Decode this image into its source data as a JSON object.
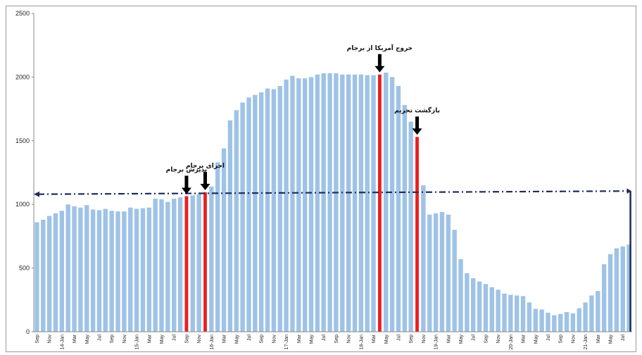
{
  "chart_data": {
    "type": "bar",
    "title": "",
    "xlabel": "",
    "ylabel": "",
    "ylim": [
      0,
      2500
    ],
    "yticks": [
      0,
      500,
      1000,
      1500,
      2000,
      2500
    ],
    "grid": false,
    "legend": "none",
    "bar_color": "#9ec3e6",
    "highlight_color": "#ee1c1c",
    "reference_line_color": "#1f2d5c",
    "arrow_color": "#000000",
    "x_tick_labels": [
      "Sep",
      "Nov",
      "14-Jan",
      "Mar",
      "May",
      "Jul",
      "Sep",
      "Nov",
      "15-Jan",
      "Mar",
      "May",
      "Jul",
      "Sep",
      "Nov",
      "16-Jan",
      "Mar",
      "May",
      "Jul",
      "Sep",
      "Nov",
      "17-Jan",
      "Mar",
      "May",
      "Jul",
      "Sep",
      "Nov",
      "18-Jan",
      "Mar",
      "May",
      "Jul",
      "Sep",
      "Nov",
      "19-Jan",
      "Mar",
      "May",
      "Jul",
      "Sep",
      "Nov",
      "20-Jan",
      "Mar",
      "May",
      "Jul",
      "Sep",
      "Nov",
      "21-Jan",
      "Mar",
      "May",
      "Jul"
    ],
    "values": [
      860,
      880,
      910,
      930,
      950,
      1000,
      985,
      975,
      995,
      960,
      955,
      965,
      950,
      945,
      945,
      975,
      965,
      970,
      975,
      1045,
      1040,
      1020,
      1045,
      1055,
      1065,
      1070,
      1080,
      1095,
      1140,
      1330,
      1440,
      1660,
      1740,
      1800,
      1840,
      1860,
      1880,
      1910,
      1905,
      1930,
      1980,
      2010,
      1990,
      1990,
      2000,
      2020,
      2030,
      2030,
      2030,
      2020,
      2020,
      2020,
      2020,
      2015,
      2015,
      2020,
      2035,
      2000,
      1930,
      1780,
      1650,
      1530,
      1150,
      920,
      930,
      940,
      920,
      800,
      570,
      460,
      420,
      395,
      375,
      350,
      330,
      300,
      290,
      285,
      280,
      230,
      180,
      175,
      150,
      130,
      140,
      155,
      145,
      185,
      230,
      285,
      320,
      530,
      610,
      655,
      670,
      685
    ],
    "highlight_indices": [
      24,
      27,
      55,
      61
    ],
    "reference_line": {
      "start_value": 1080,
      "end_value": 1105,
      "style": "dash-dot"
    },
    "annotations": [
      {
        "text": "پذیرش برجام",
        "bar_index": 24
      },
      {
        "text": "اجرای برجام",
        "bar_index": 27
      },
      {
        "text": "خروج آمریکا از برجام",
        "bar_index": 55
      },
      {
        "text": "بازگشت تحریم",
        "bar_index": 61
      }
    ]
  }
}
